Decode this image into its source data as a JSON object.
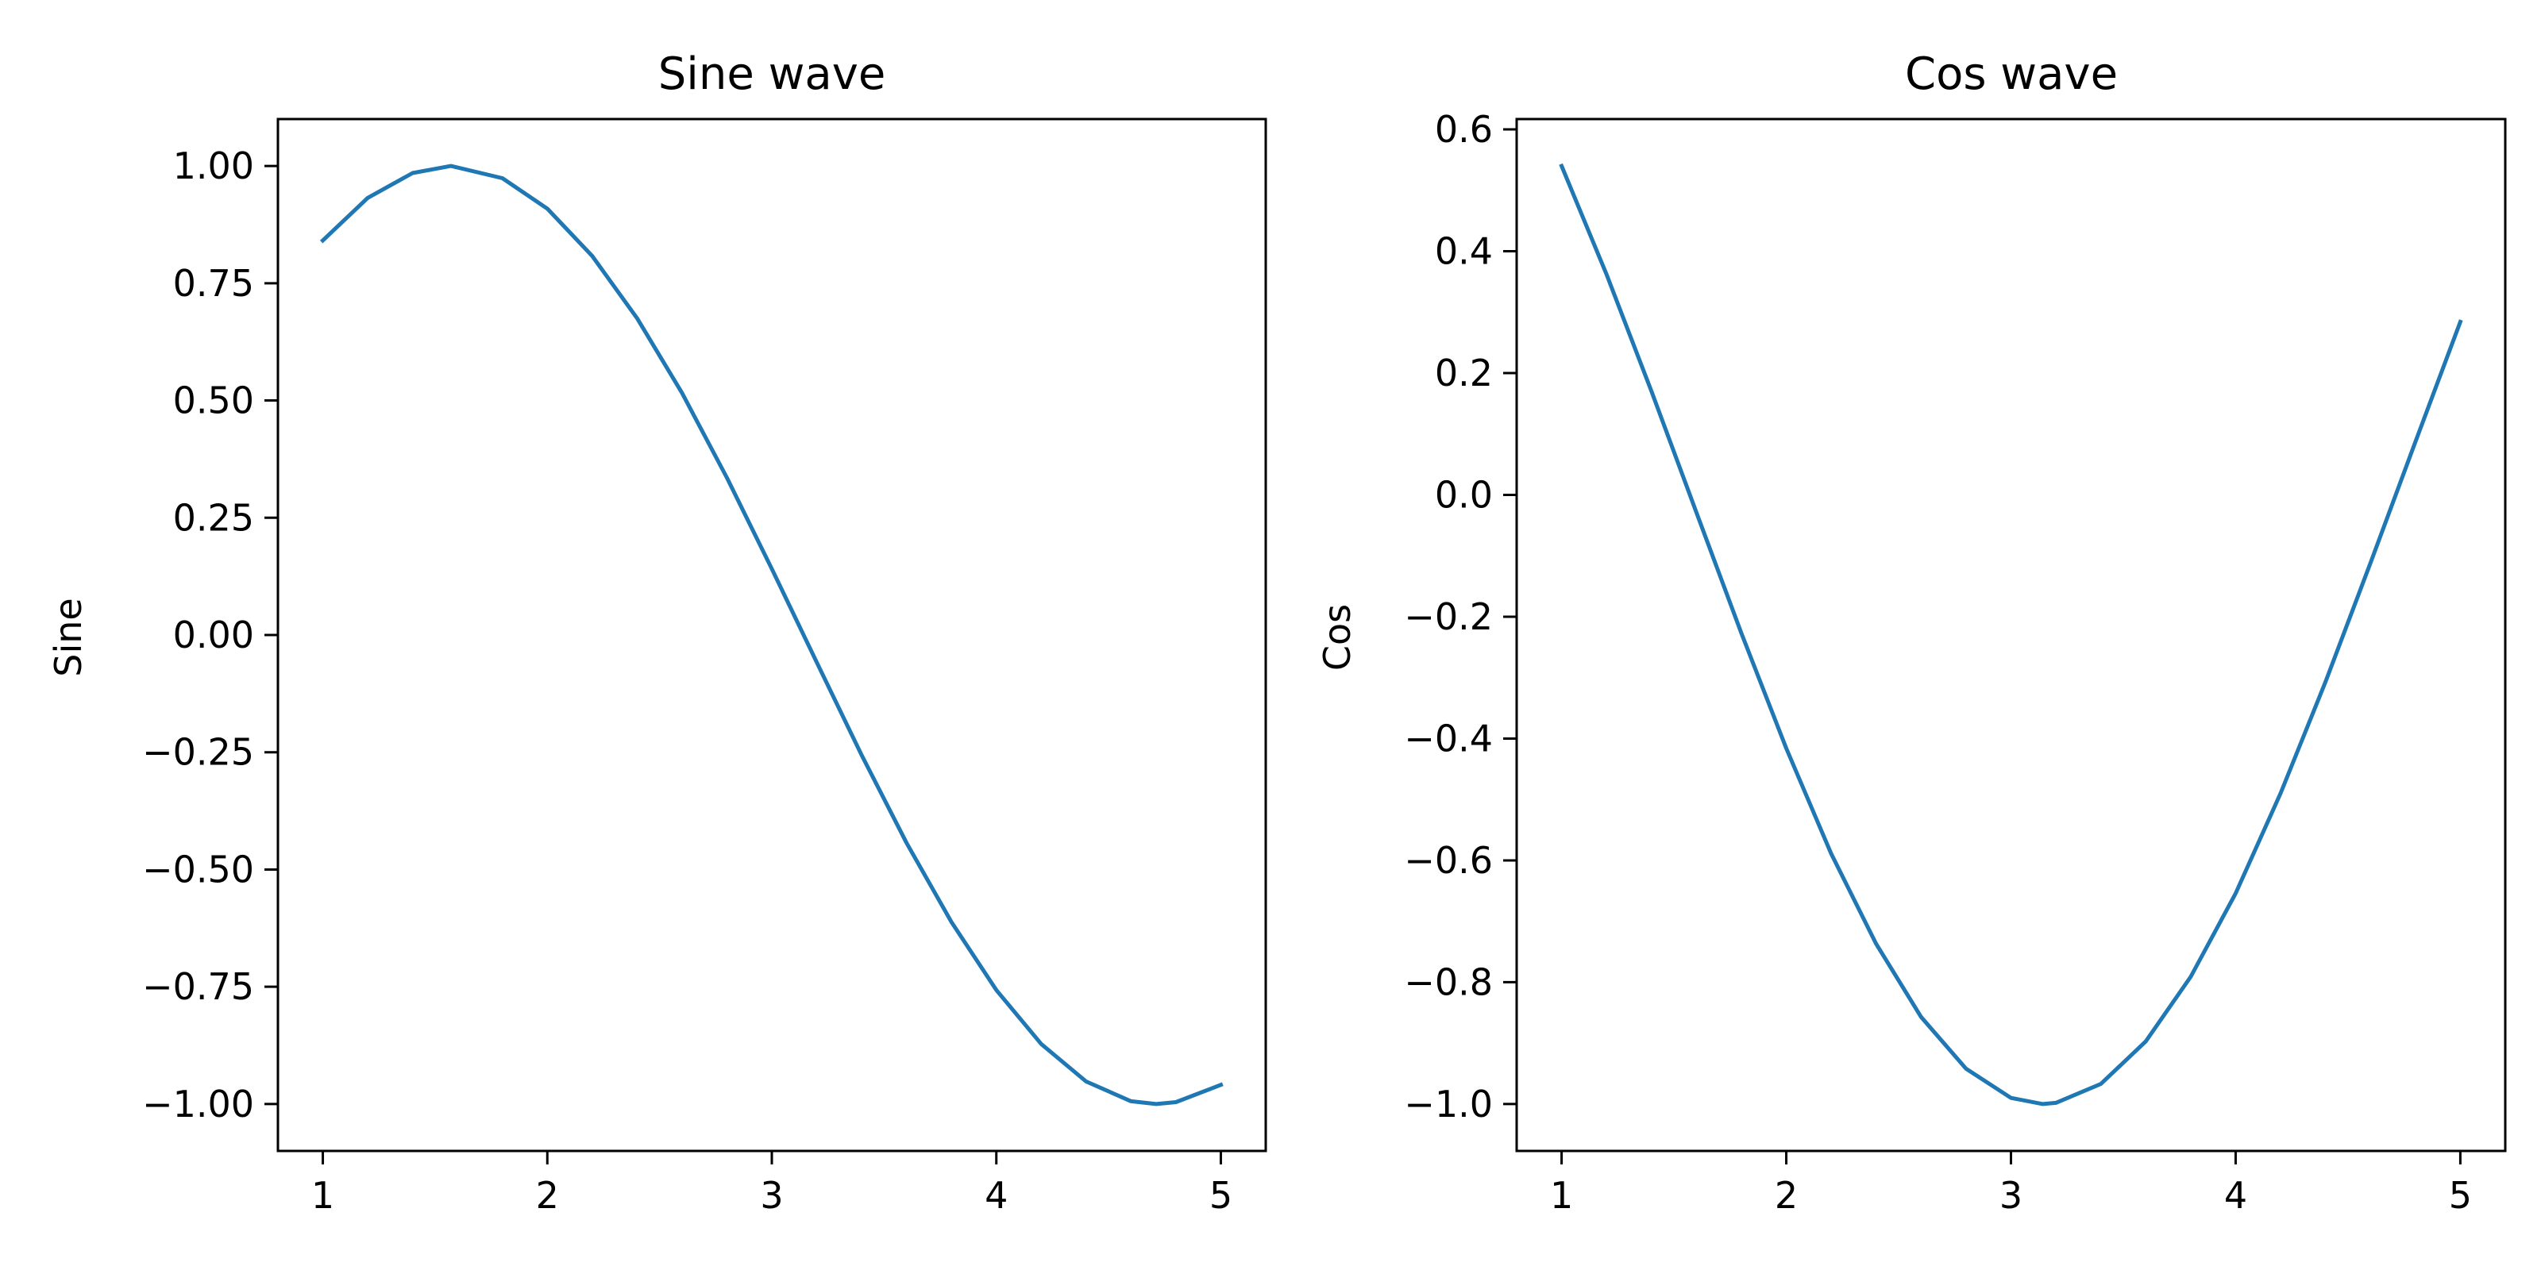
{
  "chart_data": [
    {
      "type": "line",
      "title": "Sine wave",
      "xlabel": "",
      "ylabel": "Sine",
      "xlim": [
        0.8,
        5.2
      ],
      "ylim": [
        -1.1,
        1.1
      ],
      "xticks": [
        1,
        2,
        3,
        4,
        5
      ],
      "xtick_labels": [
        "1",
        "2",
        "3",
        "4",
        "5"
      ],
      "yticks": [
        1.0,
        0.75,
        0.5,
        0.25,
        0.0,
        -0.25,
        -0.5,
        -0.75,
        -1.0
      ],
      "ytick_labels": [
        "1.00",
        "0.75",
        "0.50",
        "0.25",
        "0.00",
        "−0.25",
        "−0.50",
        "−0.75",
        "−1.00"
      ],
      "grid": false,
      "color": "#1f77b4",
      "series": [
        {
          "x": [
            1.0,
            1.2,
            1.4,
            1.5708,
            1.8,
            2.0,
            2.2,
            2.4,
            2.6,
            2.8,
            3.0,
            3.2,
            3.4,
            3.6,
            3.8,
            4.0,
            4.2,
            4.4,
            4.6,
            4.7124,
            4.8,
            5.0
          ],
          "y": [
            0.841,
            0.932,
            0.985,
            1.0,
            0.974,
            0.909,
            0.808,
            0.675,
            0.516,
            0.335,
            0.141,
            -0.058,
            -0.256,
            -0.443,
            -0.612,
            -0.757,
            -0.872,
            -0.952,
            -0.994,
            -1.0,
            -0.996,
            -0.959
          ]
        }
      ]
    },
    {
      "type": "line",
      "title": "Cos wave",
      "xlabel": "",
      "ylabel": "Cos",
      "xlim": [
        0.8,
        5.2
      ],
      "ylim": [
        -1.077,
        0.617
      ],
      "xticks": [
        1,
        2,
        3,
        4,
        5
      ],
      "xtick_labels": [
        "1",
        "2",
        "3",
        "4",
        "5"
      ],
      "yticks": [
        0.6,
        0.4,
        0.2,
        0.0,
        -0.2,
        -0.4,
        -0.6,
        -0.8,
        -1.0
      ],
      "ytick_labels": [
        "0.6",
        "0.4",
        "0.2",
        "0.0",
        "−0.2",
        "−0.4",
        "−0.6",
        "−0.8",
        "−1.0"
      ],
      "grid": false,
      "color": "#1f77b4",
      "series": [
        {
          "x": [
            1.0,
            1.2,
            1.4,
            1.6,
            1.8,
            2.0,
            2.2,
            2.4,
            2.6,
            2.8,
            3.0,
            3.1416,
            3.2,
            3.4,
            3.6,
            3.8,
            4.0,
            4.2,
            4.4,
            4.6,
            4.8,
            5.0
          ],
          "y": [
            0.54,
            0.362,
            0.17,
            -0.029,
            -0.227,
            -0.416,
            -0.589,
            -0.737,
            -0.857,
            -0.942,
            -0.99,
            -1.0,
            -0.998,
            -0.967,
            -0.897,
            -0.791,
            -0.654,
            -0.49,
            -0.307,
            -0.112,
            0.087,
            0.284
          ]
        }
      ]
    }
  ]
}
